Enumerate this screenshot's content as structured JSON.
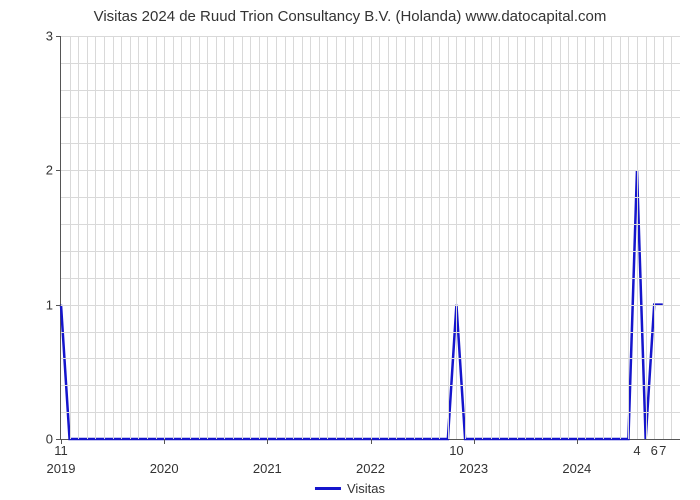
{
  "chart": {
    "type": "line",
    "title": "Visitas 2024 de Ruud Trion Consultancy B.V. (Holanda) www.datocapital.com",
    "title_fontsize": 15,
    "background_color": "#ffffff",
    "grid_color": "#d9d9d9",
    "axis_color": "#555555",
    "y": {
      "min": 0,
      "max": 3,
      "ticks": [
        0,
        1,
        2,
        3
      ],
      "label_fontsize": 13,
      "minor_gridlines": [
        0.2,
        0.4,
        0.6,
        0.8,
        1.2,
        1.4,
        1.6,
        1.8,
        2.2,
        2.4,
        2.6,
        2.8
      ]
    },
    "x": {
      "min": 2019,
      "max": 2025,
      "year_labels": [
        2019,
        2020,
        2021,
        2022,
        2023,
        2024
      ],
      "label_fontsize": 13,
      "month_gridline_offsets": [
        0,
        0.083,
        0.167,
        0.25,
        0.333,
        0.417,
        0.5,
        0.583,
        0.667,
        0.75,
        0.833,
        0.917
      ]
    },
    "series": {
      "name": "Visitas",
      "color": "#1515cc",
      "line_width": 2.5,
      "points": [
        {
          "x": 2019.0,
          "y": 1,
          "label": "11",
          "show_label": true
        },
        {
          "x": 2019.083,
          "y": 0
        },
        {
          "x": 2022.75,
          "y": 0
        },
        {
          "x": 2022.833,
          "y": 1,
          "label": "10",
          "show_label": true
        },
        {
          "x": 2022.917,
          "y": 0
        },
        {
          "x": 2024.5,
          "y": 0
        },
        {
          "x": 2024.583,
          "y": 2,
          "label": "4",
          "show_label": true
        },
        {
          "x": 2024.667,
          "y": 0
        },
        {
          "x": 2024.75,
          "y": 1,
          "label": "6",
          "show_label": true
        },
        {
          "x": 2024.833,
          "y": 1,
          "label": "7",
          "show_label": true
        }
      ]
    },
    "legend": {
      "label": "Visitas",
      "position": "bottom-center",
      "fontsize": 13
    }
  }
}
